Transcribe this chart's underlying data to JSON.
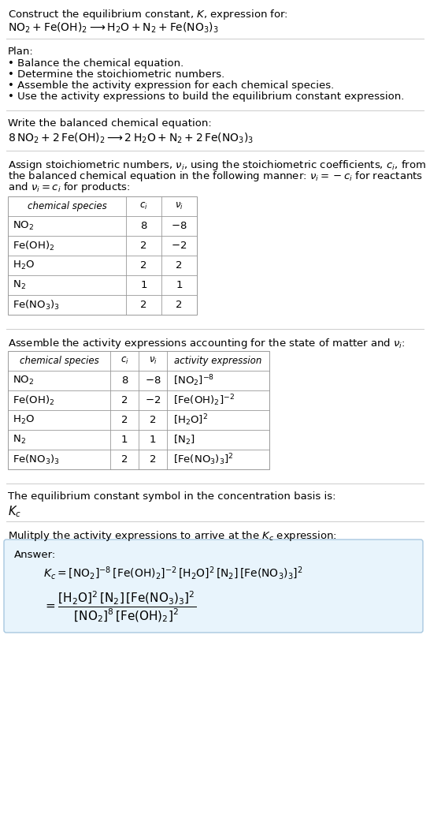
{
  "title_line1": "Construct the equilibrium constant, $K$, expression for:",
  "title_line2": "$\\mathrm{NO_2 + Fe(OH)_2 \\longrightarrow H_2O + N_2 + Fe(NO_3)_3}$",
  "plan_header": "Plan:",
  "plan_items": [
    "• Balance the chemical equation.",
    "• Determine the stoichiometric numbers.",
    "• Assemble the activity expression for each chemical species.",
    "• Use the activity expressions to build the equilibrium constant expression."
  ],
  "balanced_header": "Write the balanced chemical equation:",
  "balanced_eq": "$8\\,\\mathrm{NO_2} + 2\\,\\mathrm{Fe(OH)_2} \\longrightarrow 2\\,\\mathrm{H_2O} + \\mathrm{N_2} + 2\\,\\mathrm{Fe(NO_3)_3}$",
  "stoich_header_parts": [
    "Assign stoichiometric numbers, $\\nu_i$, using the stoichiometric coefficients, $c_i$, from",
    "the balanced chemical equation in the following manner: $\\nu_i = -c_i$ for reactants",
    "and $\\nu_i = c_i$ for products:"
  ],
  "table1_headers": [
    "chemical species",
    "$c_i$",
    "$\\nu_i$"
  ],
  "table1_rows": [
    [
      "$\\mathrm{NO_2}$",
      "8",
      "$-8$"
    ],
    [
      "$\\mathrm{Fe(OH)_2}$",
      "2",
      "$-2$"
    ],
    [
      "$\\mathrm{H_2O}$",
      "2",
      "2"
    ],
    [
      "$\\mathrm{N_2}$",
      "1",
      "1"
    ],
    [
      "$\\mathrm{Fe(NO_3)_3}$",
      "2",
      "2"
    ]
  ],
  "activity_header": "Assemble the activity expressions accounting for the state of matter and $\\nu_i$:",
  "table2_headers": [
    "chemical species",
    "$c_i$",
    "$\\nu_i$",
    "activity expression"
  ],
  "table2_rows": [
    [
      "$\\mathrm{NO_2}$",
      "8",
      "$-8$",
      "$[\\mathrm{NO_2}]^{-8}$"
    ],
    [
      "$\\mathrm{Fe(OH)_2}$",
      "2",
      "$-2$",
      "$[\\mathrm{Fe(OH)_2}]^{-2}$"
    ],
    [
      "$\\mathrm{H_2O}$",
      "2",
      "2",
      "$[\\mathrm{H_2O}]^{2}$"
    ],
    [
      "$\\mathrm{N_2}$",
      "1",
      "1",
      "$[\\mathrm{N_2}]$"
    ],
    [
      "$\\mathrm{Fe(NO_3)_3}$",
      "2",
      "2",
      "$[\\mathrm{Fe(NO_3)_3}]^{2}$"
    ]
  ],
  "kc_header": "The equilibrium constant symbol in the concentration basis is:",
  "kc_symbol": "$K_c$",
  "multiply_header": "Mulitply the activity expressions to arrive at the $K_c$ expression:",
  "answer_label": "Answer:",
  "answer_line1": "$K_c = [\\mathrm{NO_2}]^{-8}\\,[\\mathrm{Fe(OH)_2}]^{-2}\\,[\\mathrm{H_2O}]^{2}\\,[\\mathrm{N_2}]\\,[\\mathrm{Fe(NO_3)_3}]^{2}$",
  "answer_line2": "$= \\dfrac{[\\mathrm{H_2O}]^{2}\\,[\\mathrm{N_2}]\\,[\\mathrm{Fe(NO_3)_3}]^{2}}{[\\mathrm{NO_2}]^{8}\\,[\\mathrm{Fe(OH)_2}]^{2}}$",
  "bg_color": "#ffffff",
  "text_color": "#000000",
  "answer_bg": "#e8f4fc",
  "answer_border": "#a8c8e0",
  "separator_color": "#cccccc",
  "font_size": 9.5,
  "small_font": 8.5
}
